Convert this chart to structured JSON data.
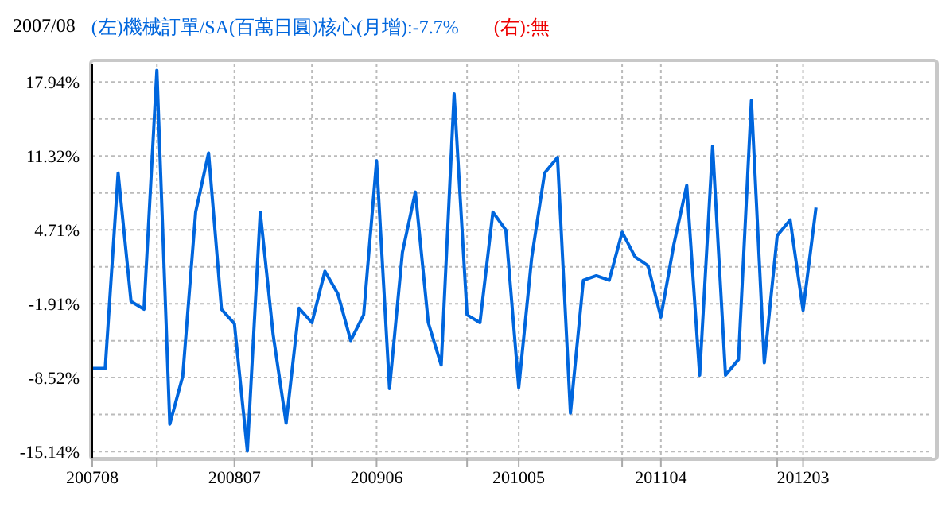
{
  "chart_data": {
    "type": "line",
    "title": "2007/08",
    "x": [
      "2007-08",
      "2007-09",
      "2007-10",
      "2007-11",
      "2007-12",
      "2008-01",
      "2008-02",
      "2008-03",
      "2008-04",
      "2008-05",
      "2008-06",
      "2008-07",
      "2008-08",
      "2008-09",
      "2008-10",
      "2008-11",
      "2008-12",
      "2009-01",
      "2009-02",
      "2009-03",
      "2009-04",
      "2009-05",
      "2009-06",
      "2009-07",
      "2009-08",
      "2009-09",
      "2009-10",
      "2009-11",
      "2009-12",
      "2010-01",
      "2010-02",
      "2010-03",
      "2010-04",
      "2010-05",
      "2010-06",
      "2010-07",
      "2010-08",
      "2010-09",
      "2010-10",
      "2010-11",
      "2010-12",
      "2011-01",
      "2011-02",
      "2011-03",
      "2011-04",
      "2011-05",
      "2011-06",
      "2011-07",
      "2011-08",
      "2011-09",
      "2011-10",
      "2011-11",
      "2011-12",
      "2012-01",
      "2012-02",
      "2012-03",
      "2012-04"
    ],
    "series": [
      {
        "name": "(左)機械訂單/SA(百萬日圓)核心(月增):-7.7%",
        "color": "#0066dd",
        "values": [
          -7.7,
          -7.7,
          9.8,
          -1.7,
          -2.4,
          19.0,
          -12.7,
          -8.4,
          6.3,
          11.6,
          -2.4,
          -3.7,
          -15.1,
          6.3,
          -4.7,
          -12.6,
          -2.3,
          -3.6,
          1.0,
          -1.0,
          -5.2,
          -2.9,
          10.9,
          -9.5,
          2.7,
          8.1,
          -3.6,
          -7.4,
          16.9,
          -2.9,
          -3.6,
          6.3,
          4.7,
          -9.4,
          2.2,
          9.8,
          11.2,
          -11.7,
          0.2,
          0.6,
          0.2,
          4.5,
          2.3,
          1.5,
          -3.1,
          3.4,
          8.7,
          -8.3,
          12.2,
          -8.3,
          -6.9,
          16.3,
          -7.2,
          4.2,
          5.6,
          -2.5,
          6.7
        ]
      }
    ],
    "annotations": [
      "(右):無"
    ],
    "legend": "top left",
    "ylim": [
      -15.7,
      19.6
    ],
    "yticks": [
      {
        "value": -15.14,
        "label": "-15.14%"
      },
      {
        "value": -11.83,
        "label": null
      },
      {
        "value": -8.52,
        "label": "-8.52%"
      },
      {
        "value": -5.22,
        "label": null
      },
      {
        "value": -1.91,
        "label": "-1.91%"
      },
      {
        "value": 1.4,
        "label": null
      },
      {
        "value": 4.71,
        "label": "4.71%"
      },
      {
        "value": 8.02,
        "label": null
      },
      {
        "value": 11.32,
        "label": "11.32%"
      },
      {
        "value": 14.63,
        "label": null
      },
      {
        "value": 17.94,
        "label": "17.94%"
      }
    ],
    "xlim": [
      "2007-08",
      "2013-01"
    ],
    "xticks": [
      {
        "value": "2007-08",
        "label": "200708"
      },
      {
        "value": "2008-01",
        "label": null
      },
      {
        "value": "2008-07",
        "label": "200807"
      },
      {
        "value": "2009-01",
        "label": null
      },
      {
        "value": "2009-06",
        "label": "200906"
      },
      {
        "value": "2010-01",
        "label": null
      },
      {
        "value": "2010-05",
        "label": "201005"
      },
      {
        "value": "2011-01",
        "label": null
      },
      {
        "value": "2011-04",
        "label": "201104"
      },
      {
        "value": "2012-01",
        "label": null
      },
      {
        "value": "2012-03",
        "label": "201203"
      }
    ],
    "grid": true,
    "marker": "none",
    "line_style": "solid"
  }
}
